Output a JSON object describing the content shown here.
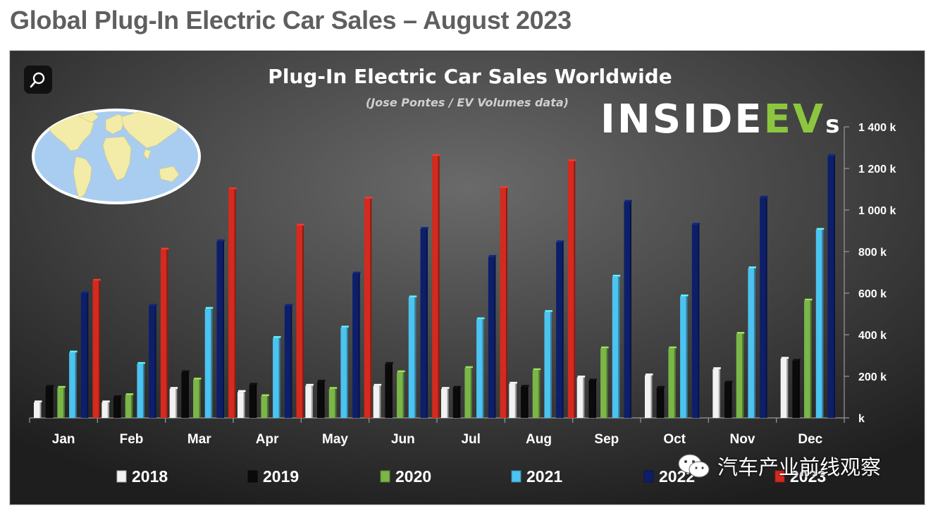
{
  "page": {
    "title": "Global Plug-In Electric Car Sales – August 2023"
  },
  "brand": {
    "inside": "INSIDE",
    "ev": "EV",
    "s": "s"
  },
  "watermark": {
    "text": "汽车产业前线观察"
  },
  "colors": {
    "background": "#3b3b3b",
    "2018": "#f2f2f2",
    "2019": "#0a0a0a",
    "2020": "#7ab648",
    "2021": "#4cc3f0",
    "2022": "#0d1f6b",
    "2023": "#d42a1f"
  },
  "chart_data": {
    "type": "bar",
    "title": "Plug-In Electric Car Sales Worldwide",
    "subtitle": "(Jose Pontes / EV Volumes data)",
    "categories": [
      "Jan",
      "Feb",
      "Mar",
      "Apr",
      "May",
      "Jun",
      "Jul",
      "Aug",
      "Sep",
      "Oct",
      "Nov",
      "Dec"
    ],
    "series": [
      {
        "name": "2018",
        "values": [
          75,
          75,
          140,
          125,
          155,
          155,
          140,
          165,
          195,
          205,
          235,
          285
        ]
      },
      {
        "name": "2019",
        "values": [
          150,
          100,
          220,
          160,
          175,
          260,
          145,
          150,
          180,
          145,
          170,
          275
        ]
      },
      {
        "name": "2020",
        "values": [
          145,
          110,
          185,
          105,
          140,
          220,
          240,
          230,
          335,
          335,
          405,
          565
        ]
      },
      {
        "name": "2021",
        "values": [
          315,
          260,
          525,
          385,
          435,
          580,
          475,
          510,
          680,
          585,
          720,
          905
        ]
      },
      {
        "name": "2022",
        "values": [
          600,
          540,
          850,
          540,
          695,
          910,
          775,
          845,
          1040,
          930,
          1060,
          1260
        ]
      },
      {
        "name": "2023",
        "values": [
          660,
          810,
          1100,
          925,
          1055,
          1260,
          1105,
          1235,
          null,
          null,
          null,
          null
        ]
      }
    ],
    "ylim": [
      0,
      1400
    ],
    "yticks": [
      0,
      200,
      400,
      600,
      800,
      1000,
      1200,
      1400
    ],
    "ytick_labels": [
      "k",
      "200 k",
      "400 k",
      "600 k",
      "800 k",
      "1 000 k",
      "1 200 k",
      "1 400 k"
    ],
    "y_axis_side": "right",
    "legend": {
      "position": "bottom"
    },
    "grid": false
  }
}
